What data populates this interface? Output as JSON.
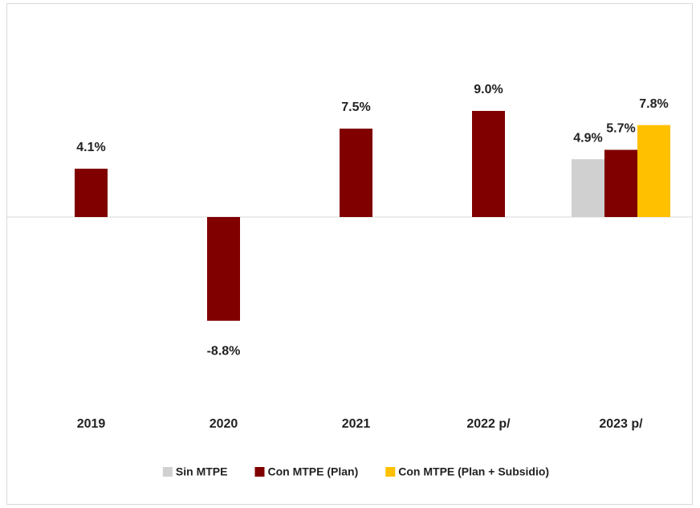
{
  "chart_data": {
    "type": "bar",
    "categories": [
      "2019",
      "2020",
      "2021",
      "2022 p/",
      "2023 p/"
    ],
    "series": [
      {
        "name": "Sin MTPE",
        "color": "#d0d0d0",
        "values": [
          null,
          null,
          null,
          null,
          4.9
        ],
        "value_labels": [
          null,
          null,
          null,
          null,
          "4.9%"
        ]
      },
      {
        "name": "Con MTPE (Plan)",
        "color": "#800000",
        "values": [
          4.1,
          -8.8,
          7.5,
          9.0,
          5.7
        ],
        "value_labels": [
          "4.1%",
          "-8.8%",
          "7.5%",
          "9.0%",
          "5.7%"
        ]
      },
      {
        "name": "Con MTPE (Plan + Subsidio)",
        "color": "#ffc000",
        "values": [
          null,
          null,
          null,
          null,
          7.8
        ],
        "value_labels": [
          null,
          null,
          null,
          null,
          "7.8%"
        ]
      }
    ],
    "ylim": [
      -12,
      12
    ],
    "legend": "bottom"
  }
}
